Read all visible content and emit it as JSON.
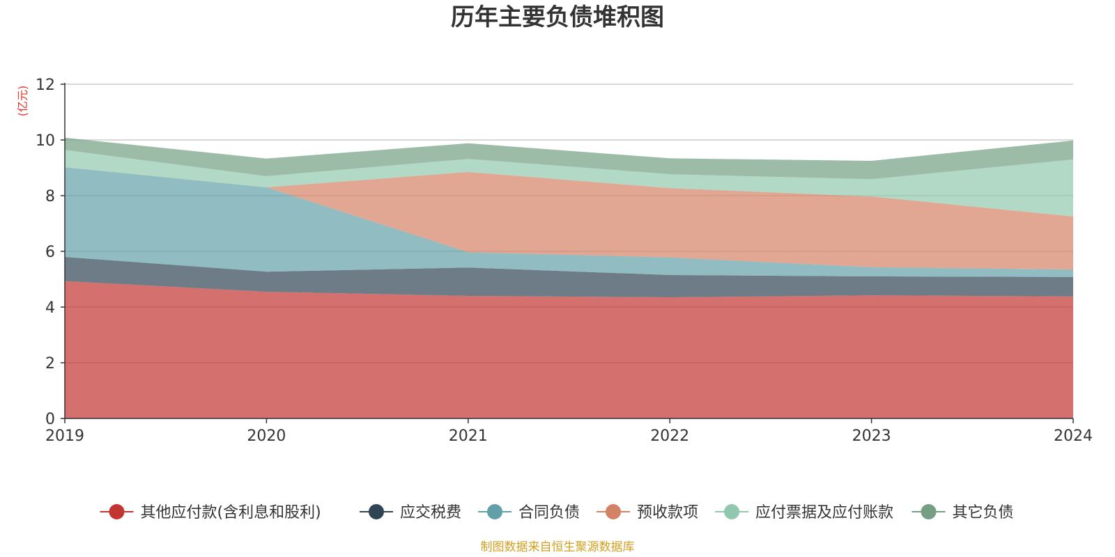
{
  "title": "历年主要负债堆积图",
  "unit_label": "(亿元)",
  "source": "制图数据来自恒生聚源数据库",
  "chart_data": {
    "type": "area",
    "stacked": true,
    "categories": [
      "2019",
      "2020",
      "2021",
      "2022",
      "2023",
      "2024"
    ],
    "ylim": [
      0,
      12
    ],
    "yticks": [
      "0",
      "2",
      "4",
      "6",
      "8",
      "10",
      "12"
    ],
    "grid": true,
    "legend_position": "bottom",
    "series": [
      {
        "name": "其他应付款(含利息和股利)",
        "color": "#c23531",
        "values": [
          4.93,
          4.55,
          4.4,
          4.35,
          4.42,
          4.38
        ]
      },
      {
        "name": "应交税费",
        "color": "#2f4554",
        "values": [
          0.87,
          0.72,
          1.02,
          0.8,
          0.68,
          0.7
        ]
      },
      {
        "name": "合同负债",
        "color": "#61a0a8",
        "values": [
          3.22,
          3.03,
          0.55,
          0.63,
          0.33,
          0.27
        ]
      },
      {
        "name": "预收款项",
        "color": "#d48265",
        "values": [
          0.0,
          0.0,
          2.88,
          2.49,
          2.54,
          1.9
        ]
      },
      {
        "name": "应付票据及应付账款",
        "color": "#91c7ae",
        "values": [
          0.62,
          0.4,
          0.47,
          0.5,
          0.62,
          2.05
        ]
      },
      {
        "name": "其它负债",
        "color": "#749f83",
        "values": [
          0.44,
          0.63,
          0.56,
          0.57,
          0.66,
          0.68
        ]
      }
    ]
  }
}
